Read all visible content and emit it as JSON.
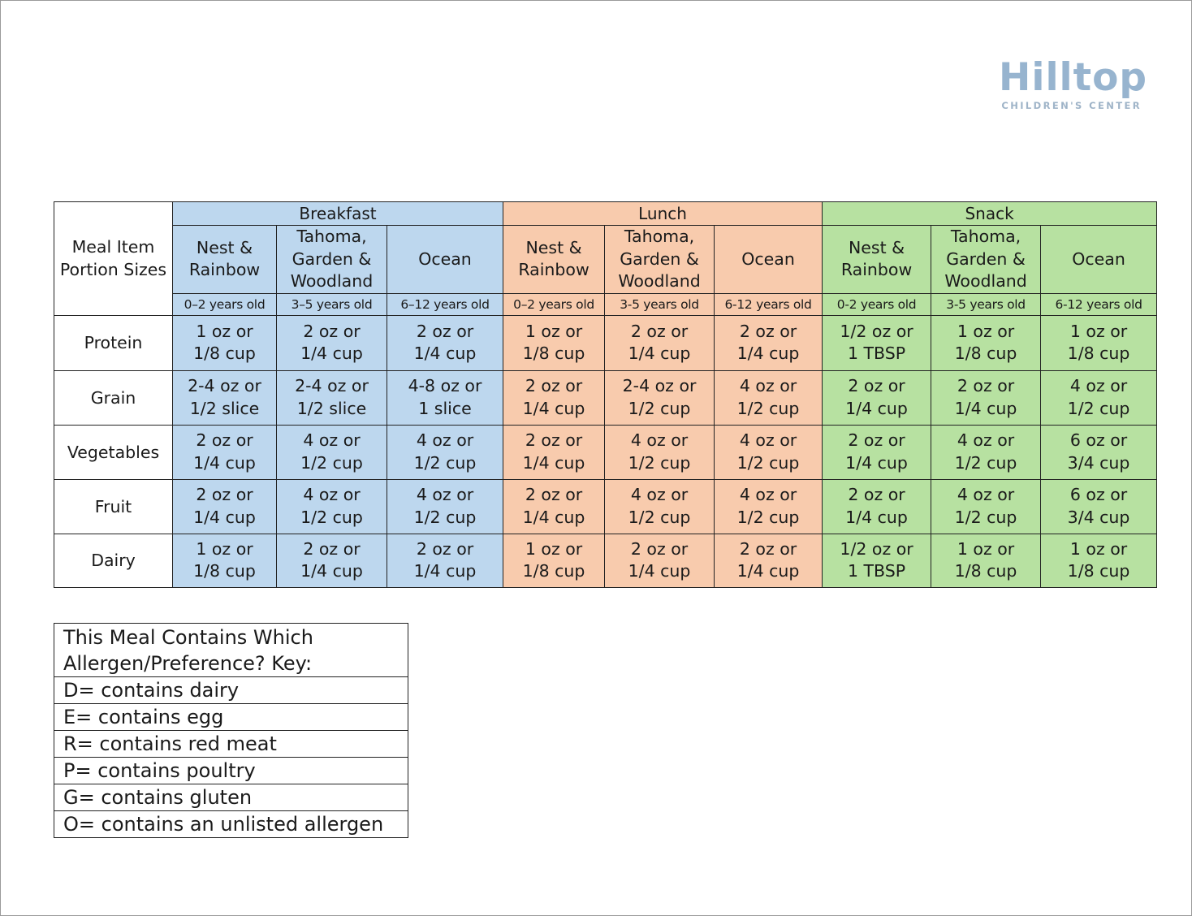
{
  "logo": {
    "name": "Hilltop",
    "subtitle": "CHILDREN'S CENTER"
  },
  "table": {
    "corner_label": "Meal Item Portion Sizes",
    "meals": [
      {
        "name": "Breakfast",
        "color": "#bdd7ee"
      },
      {
        "name": "Lunch",
        "color": "#f8cbad"
      },
      {
        "name": "Snack",
        "color": "#b7e1a1"
      }
    ],
    "groups": [
      [
        "Nest &",
        "Rainbow"
      ],
      [
        "Tahoma,",
        "Garden &",
        "Woodland"
      ],
      [
        "Ocean"
      ]
    ],
    "ages": [
      "0–2 years old",
      "3–5 years old",
      "6–12 years old",
      "0–2 years old",
      "3-5 years old",
      "6-12 years old",
      "0-2 years old",
      "3-5 years old",
      "6-12 years old"
    ],
    "rows": [
      {
        "item": "Protein",
        "cells": [
          [
            "1 oz or",
            "1/8 cup"
          ],
          [
            "2 oz or",
            "1/4 cup"
          ],
          [
            "2 oz or",
            "1/4 cup"
          ],
          [
            "1 oz or",
            "1/8 cup"
          ],
          [
            "2 oz or",
            "1/4 cup"
          ],
          [
            "2 oz or",
            "1/4 cup"
          ],
          [
            "1/2 oz or",
            "1 TBSP"
          ],
          [
            "1 oz or",
            "1/8 cup"
          ],
          [
            "1 oz or",
            "1/8 cup"
          ]
        ]
      },
      {
        "item": "Grain",
        "cells": [
          [
            "2-4 oz or",
            "1/2 slice"
          ],
          [
            "2-4 oz or",
            "1/2 slice"
          ],
          [
            "4-8 oz or",
            "1 slice"
          ],
          [
            "2 oz or",
            "1/4 cup"
          ],
          [
            "2-4 oz or",
            "1/2 cup"
          ],
          [
            "4 oz or",
            "1/2 cup"
          ],
          [
            "2 oz or",
            "1/4 cup"
          ],
          [
            "2 oz or",
            "1/4 cup"
          ],
          [
            "4 oz or",
            "1/2 cup"
          ]
        ]
      },
      {
        "item": "Vegetables",
        "cells": [
          [
            "2 oz or",
            "1/4 cup"
          ],
          [
            "4 oz or",
            "1/2 cup"
          ],
          [
            "4 oz or",
            "1/2 cup"
          ],
          [
            "2 oz or",
            "1/4 cup"
          ],
          [
            "4 oz or",
            "1/2 cup"
          ],
          [
            "4 oz or",
            "1/2 cup"
          ],
          [
            "2 oz or",
            "1/4 cup"
          ],
          [
            "4 oz or",
            "1/2 cup"
          ],
          [
            "6 oz or",
            "3/4 cup"
          ]
        ]
      },
      {
        "item": "Fruit",
        "cells": [
          [
            "2 oz or",
            "1/4 cup"
          ],
          [
            "4 oz or",
            "1/2 cup"
          ],
          [
            "4 oz or",
            "1/2 cup"
          ],
          [
            "2 oz or",
            "1/4 cup"
          ],
          [
            "4 oz or",
            "1/2 cup"
          ],
          [
            "4 oz or",
            "1/2 cup"
          ],
          [
            "2 oz or",
            "1/4 cup"
          ],
          [
            "4 oz or",
            "1/2 cup"
          ],
          [
            "6 oz or",
            "3/4 cup"
          ]
        ]
      },
      {
        "item": "Dairy",
        "cells": [
          [
            "1 oz or",
            "1/8 cup"
          ],
          [
            "2 oz or",
            "1/4 cup"
          ],
          [
            "2 oz or",
            "1/4 cup"
          ],
          [
            "1 oz or",
            "1/8 cup"
          ],
          [
            "2 oz or",
            "1/4 cup"
          ],
          [
            "2 oz or",
            "1/4 cup"
          ],
          [
            "1/2 oz or",
            "1 TBSP"
          ],
          [
            "1 oz or",
            "1/8 cup"
          ],
          [
            "1 oz or",
            "1/8 cup"
          ]
        ]
      }
    ]
  },
  "key": {
    "title": "This Meal Contains Which Allergen/Preference? Key:",
    "items": [
      "D= contains dairy",
      "E= contains egg",
      "R= contains red meat",
      "P= contains poultry",
      "G= contains gluten",
      "O= contains an unlisted allergen"
    ]
  }
}
